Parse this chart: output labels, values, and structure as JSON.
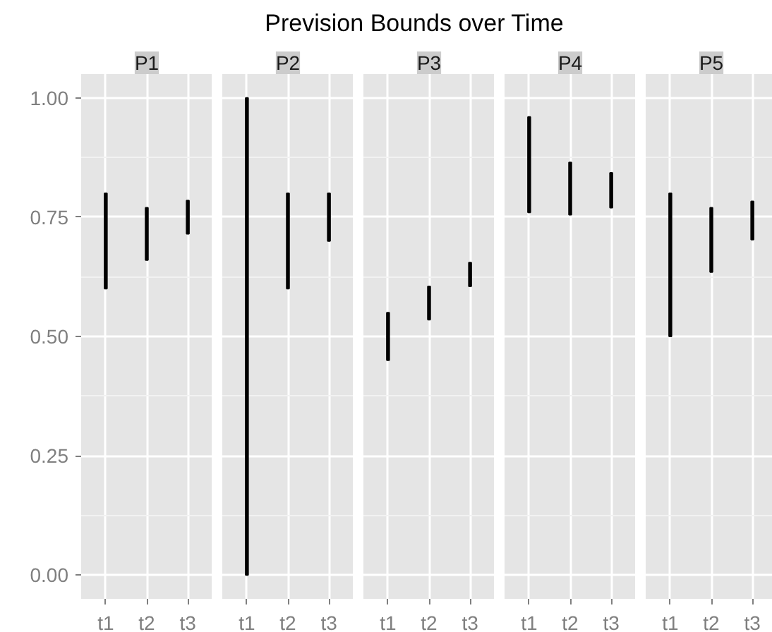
{
  "chart_data": [
    {
      "type": "bar",
      "subtitle": "P1",
      "categories": [
        "t1",
        "t2",
        "t3"
      ],
      "base": [
        0.6,
        0.66,
        0.715
      ],
      "values": [
        0.2,
        0.11,
        0.07
      ],
      "color": "#000000",
      "ylim": [
        -0.05,
        1.05
      ],
      "yticks": [
        {
          "value": 0,
          "label": "0.00"
        },
        0.25,
        {
          "value": 0.5,
          "label": "0.50"
        },
        0.75,
        {
          "value": 1,
          "label": "1.00"
        }
      ],
      "grid": true
    },
    {
      "type": "bar",
      "subtitle": "P2",
      "categories": [
        "t1",
        "t2",
        "t3"
      ],
      "base": [
        0.0,
        0.6,
        0.7
      ],
      "values": [
        1.0,
        0.2,
        0.1
      ],
      "color": "#000000",
      "ylim": [
        -0.05,
        1.05
      ],
      "yticks": [
        0,
        0.25,
        0.5,
        0.75,
        1
      ],
      "grid": true,
      "tick_labels": "x"
    },
    {
      "type": "bar",
      "title": "Prevision Bounds over Time",
      "subtitle": "P3",
      "categories": [
        "t1",
        "t2",
        "t3"
      ],
      "base": [
        0.45,
        0.535,
        0.605
      ],
      "values": [
        0.1,
        0.07,
        0.05
      ],
      "color": "#000000",
      "ylim": [
        -0.05,
        1.05
      ],
      "yticks": [
        0,
        0.25,
        0.5,
        0.75,
        1
      ],
      "grid": true,
      "tick_labels": "x"
    },
    {
      "type": "bar",
      "subtitle": "P4",
      "categories": [
        "t1",
        "t2",
        "t3"
      ],
      "base": [
        0.76,
        0.755,
        0.77
      ],
      "values": [
        0.2,
        0.11,
        0.073
      ],
      "color": "#000000",
      "ylim": [
        -0.05,
        1.05
      ],
      "yticks": [
        0,
        0.25,
        0.5,
        0.75,
        1
      ],
      "grid": true,
      "tick_labels": "x"
    },
    {
      "type": "bar",
      "subtitle": "P5",
      "categories": [
        "t1",
        "t2",
        "t3"
      ],
      "base": [
        0.5,
        0.635,
        0.703
      ],
      "values": [
        0.3,
        0.135,
        0.08
      ],
      "color": "#000000",
      "ylim": [
        -0.05,
        1.05
      ],
      "yticks": [
        0,
        0.25,
        0.5,
        0.75,
        1
      ],
      "grid": true,
      "tick_labels": "x"
    }
  ]
}
